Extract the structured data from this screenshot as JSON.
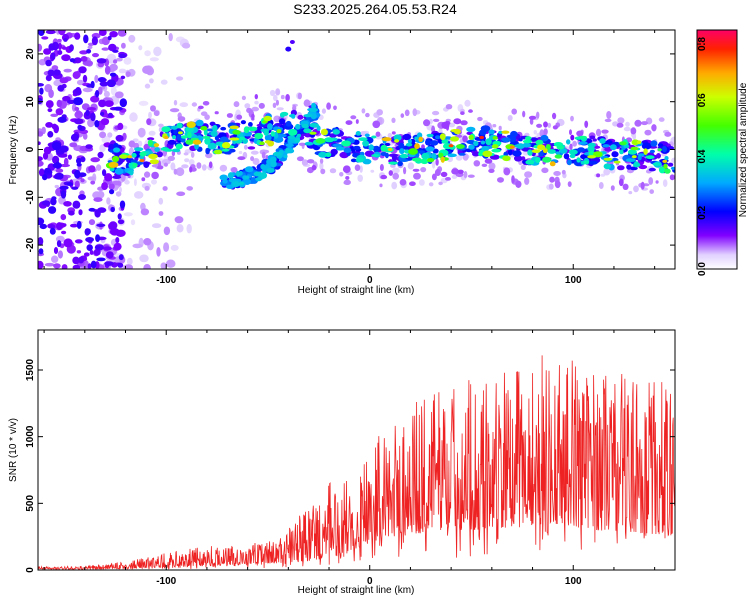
{
  "title": "S233.2025.264.05.53.R24",
  "colors": {
    "snr_line": "#ee2222",
    "frame": "#000000"
  },
  "chart_data": [
    {
      "type": "heatmap",
      "xlabel": "Height of straight line (km)",
      "ylabel": "Frequency (Hz)",
      "xlim": [
        -163,
        150
      ],
      "ylim": [
        -25,
        25
      ],
      "xticks": [
        -100,
        0,
        100
      ],
      "xtick_labels": [
        "-100",
        "0",
        "100"
      ],
      "yticks": [
        -20,
        -10,
        0,
        10,
        20
      ],
      "ytick_labels": [
        "-20",
        "-10",
        "0",
        "10",
        "20"
      ],
      "colorbar": {
        "label": "Normalized spectral amplitude",
        "range": [
          0.0,
          0.85
        ],
        "ticks": [
          0.0,
          0.2,
          0.4,
          0.6,
          0.8
        ],
        "tick_labels": [
          "0.0",
          "0.2",
          "0.4",
          "0.6",
          "0.8"
        ]
      },
      "ridge": {
        "description_points": [
          [
            -125,
            -2
          ],
          [
            -115,
            -2
          ],
          [
            -100,
            2
          ],
          [
            -85,
            3
          ],
          [
            -70,
            2
          ],
          [
            -50,
            4
          ],
          [
            -35,
            5
          ],
          [
            -25,
            2
          ],
          [
            0,
            0
          ],
          [
            25,
            0
          ],
          [
            50,
            2
          ],
          [
            75,
            0
          ],
          [
            100,
            0
          ],
          [
            125,
            -1
          ],
          [
            150,
            -2
          ]
        ],
        "branch_points": [
          [
            -70,
            -7
          ],
          [
            -55,
            -5
          ],
          [
            -45,
            -2
          ],
          [
            -35,
            3
          ],
          [
            -28,
            8
          ]
        ]
      }
    },
    {
      "type": "line",
      "xlabel": "Height of straight line (km)",
      "ylabel": "SNR (10 * v/v)",
      "xlim": [
        -163,
        150
      ],
      "ylim": [
        0,
        1800
      ],
      "xticks": [
        -100,
        0,
        100
      ],
      "xtick_labels": [
        "-100",
        "0",
        "100"
      ],
      "yticks": [
        0,
        500,
        1000,
        1500
      ],
      "ytick_labels": [
        "0",
        "500",
        "1000",
        "1500"
      ],
      "envelope": {
        "x": [
          -163,
          -140,
          -120,
          -100,
          -80,
          -60,
          -45,
          -35,
          -20,
          -10,
          0,
          10,
          20,
          30,
          50,
          70,
          90,
          110,
          130,
          150
        ],
        "max": [
          25,
          30,
          60,
          130,
          180,
          200,
          230,
          400,
          650,
          700,
          950,
          1100,
          1250,
          1350,
          1450,
          1500,
          1650,
          1550,
          1500,
          1400
        ],
        "min": [
          5,
          5,
          10,
          20,
          30,
          40,
          50,
          60,
          80,
          120,
          200,
          250,
          250,
          300,
          300,
          320,
          350,
          300,
          280,
          250
        ]
      }
    }
  ]
}
